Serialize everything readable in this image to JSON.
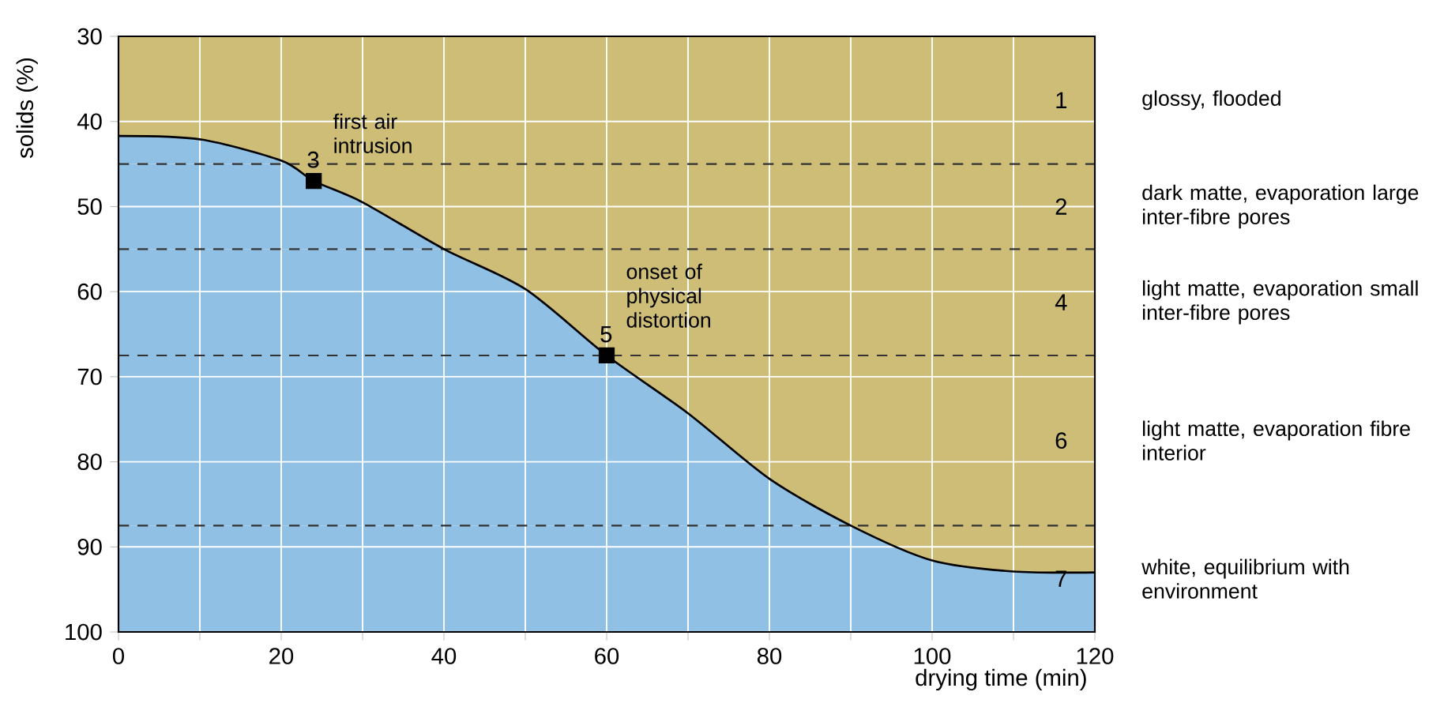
{
  "chart_data": {
    "type": "area",
    "xlabel": "drying time (min)",
    "ylabel": "solids (%)",
    "xlim": [
      0,
      120
    ],
    "ylim": [
      100,
      30
    ],
    "xticks": [
      0,
      {
        "value": 10,
        "label": null
      },
      20,
      {
        "value": 30,
        "label": null
      },
      40,
      {
        "value": 50,
        "label": null
      },
      60,
      {
        "value": 70,
        "label": null
      },
      80,
      {
        "value": 90,
        "label": null
      },
      100,
      {
        "value": 110,
        "label": null
      },
      120
    ],
    "yticks": [
      30,
      40,
      50,
      60,
      70,
      80,
      90,
      100
    ],
    "grid": true,
    "series": [
      {
        "color": "#cdbd77",
        "x": [
          0,
          10,
          20,
          24,
          30,
          40,
          50,
          60,
          70,
          80,
          90,
          100,
          110,
          120
        ],
        "values": [
          41.7,
          42.1,
          44.6,
          47,
          49.5,
          55,
          59.7,
          67.5,
          74.3,
          82,
          87.5,
          91.6,
          92.9,
          93
        ]
      },
      {
        "type": "scatter",
        "name": "3",
        "color": "#000000",
        "marker": "square",
        "x": [
          24
        ],
        "values": [
          47
        ]
      },
      {
        "type": "scatter",
        "name": "5",
        "color": "#000000",
        "marker": "square",
        "x": [
          60
        ],
        "values": [
          67.5
        ]
      }
    ],
    "bands": [
      {
        "axis": "y",
        "from": 30,
        "to": 45,
        "label": "1",
        "color": "#90c0e4"
      },
      {
        "axis": "y",
        "from": 45,
        "to": 55,
        "label": "2",
        "color": "#90c0e4"
      },
      {
        "axis": "y",
        "from": 55,
        "to": 67.5,
        "label": "4",
        "color": "#90c0e4"
      },
      {
        "axis": "y",
        "from": 67.5,
        "to": 87.5,
        "label": "6",
        "color": "#90c0e4"
      },
      {
        "axis": "y",
        "from": 87.5,
        "to": 100,
        "label": "7",
        "color": "#90c0e4"
      }
    ],
    "ref_lines": [
      {
        "axis": "y",
        "value": 45,
        "line_style": "dashed",
        "color": "#333333"
      },
      {
        "axis": "y",
        "value": 55,
        "line_style": "dashed",
        "color": "#333333"
      },
      {
        "axis": "y",
        "value": 67.5,
        "line_style": "dashed",
        "color": "#333333"
      },
      {
        "axis": "y",
        "value": 87.5,
        "line_style": "dashed",
        "color": "#333333"
      }
    ],
    "annotations": [
      {
        "text": "first air intrusion",
        "x": 24,
        "y": 47
      },
      {
        "text": "onset of physical distortion",
        "x": 60,
        "y": 67.5
      },
      "glossy, flooded",
      "dark matte, evaporation large inter-fibre pores",
      "light matte, evaporation small inter-fibre pores",
      "light matte, evaporation fibre interior",
      "white, equilibrium with environment"
    ]
  }
}
